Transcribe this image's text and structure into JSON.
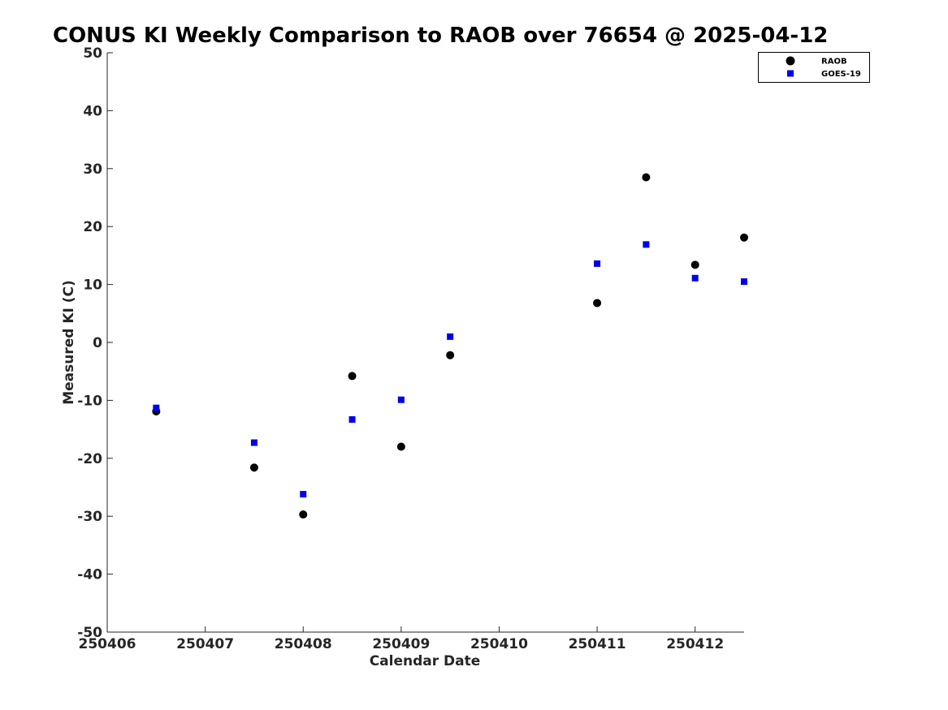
{
  "chart_data": {
    "type": "scatter",
    "title": "CONUS KI Weekly Comparison to RAOB over 76654 @ 2025-04-12",
    "xlabel": "Calendar Date",
    "ylabel": "Measured KI (C)",
    "xlim": [
      250406,
      250412.5
    ],
    "ylim": [
      -50,
      50
    ],
    "xticks": [
      250406,
      250407,
      250408,
      250409,
      250410,
      250411,
      250412
    ],
    "xtick_labels": [
      "250406",
      "250407",
      "250408",
      "250409",
      "250410",
      "250411",
      "250412"
    ],
    "yticks": [
      50,
      40,
      30,
      20,
      10,
      0,
      -10,
      -20,
      -30,
      -40,
      -50
    ],
    "ytick_labels": [
      "50",
      "40",
      "30",
      "20",
      "10",
      "0",
      "-10",
      "-20",
      "-30",
      "-40",
      "-50"
    ],
    "grid": false,
    "legend_position": "top-right",
    "series": [
      {
        "name": "RAOB",
        "marker": "circle",
        "color": "#000000",
        "x": [
          250406.5,
          250407.5,
          250408,
          250408.5,
          250409,
          250409.5,
          250411,
          250411.5,
          250412,
          250412.5
        ],
        "y": [
          -11.9,
          -21.6,
          -29.7,
          -5.8,
          -18.0,
          -2.2,
          6.8,
          28.5,
          13.4,
          18.1
        ]
      },
      {
        "name": "GOES-19",
        "marker": "square",
        "color": "#0000ee",
        "x": [
          250406.5,
          250407.5,
          250408,
          250408.5,
          250409,
          250409.5,
          250411,
          250411.5,
          250412,
          250412.5
        ],
        "y": [
          -11.3,
          -17.3,
          -26.2,
          -13.3,
          -9.9,
          1.0,
          13.6,
          16.9,
          11.1,
          10.5
        ]
      }
    ]
  }
}
